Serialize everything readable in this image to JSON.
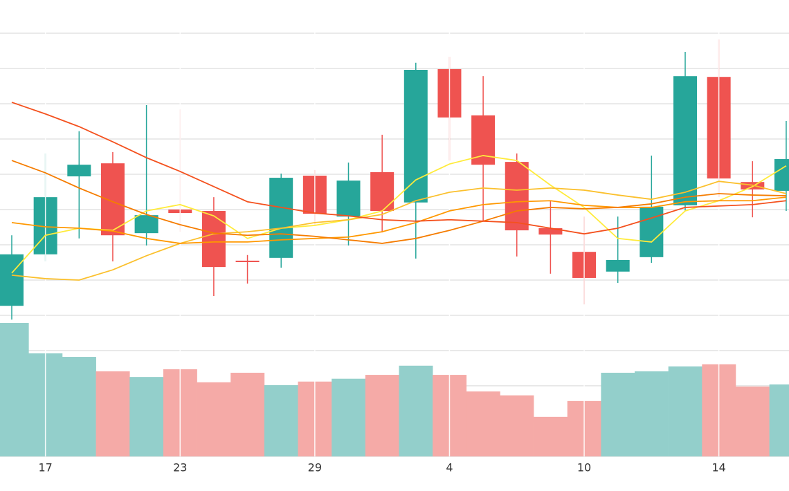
{
  "chart_data": [
    {
      "type": "candlestick",
      "open": [
        0.27,
        1.73,
        3.94,
        4.31,
        2.33,
        3.0,
        2.96,
        1.55,
        1.63,
        3.96,
        2.8,
        4.06,
        3.2,
        6.98,
        5.67,
        4.35,
        2.47,
        1.8,
        1.24,
        1.65,
        3.12,
        6.76,
        3.78,
        3.53
      ],
      "high": [
        2.27,
        4.59,
        5.22,
        4.63,
        5.96,
        5.84,
        3.35,
        1.71,
        4.02,
        4.12,
        4.33,
        5.12,
        7.16,
        7.33,
        6.78,
        4.59,
        3.25,
        2.8,
        2.8,
        4.53,
        7.47,
        7.82,
        4.37,
        5.51
      ],
      "low": [
        -0.12,
        1.53,
        2.18,
        1.53,
        1.98,
        2.37,
        0.55,
        0.9,
        1.35,
        2.57,
        1.98,
        2.35,
        1.61,
        4.39,
        2.67,
        1.67,
        1.18,
        0.31,
        0.92,
        1.49,
        2.96,
        3.35,
        2.78,
        2.96
      ],
      "close": [
        1.73,
        3.35,
        4.27,
        2.27,
        2.84,
        2.9,
        1.37,
        1.51,
        3.9,
        2.88,
        3.82,
        2.96,
        6.96,
        5.61,
        4.27,
        2.41,
        2.29,
        1.06,
        1.57,
        3.08,
        6.78,
        3.88,
        3.57,
        4.43
      ],
      "up_color": "#26a69a",
      "down_color": "#ef5350",
      "series": [
        {
          "color": "#ffeb3b",
          "values": [
            1.2,
            2.27,
            2.47,
            2.41,
            2.96,
            3.14,
            2.82,
            2.18,
            2.47,
            2.55,
            2.71,
            2.96,
            3.84,
            4.29,
            4.53,
            4.39,
            3.69,
            3.06,
            2.18,
            2.08,
            2.96,
            3.25,
            3.65,
            4.24
          ]
        },
        {
          "color": "#fbc02d",
          "values": [
            1.14,
            1.04,
            1.0,
            1.29,
            1.69,
            2.04,
            2.31,
            2.37,
            2.47,
            2.63,
            2.71,
            2.86,
            3.25,
            3.49,
            3.61,
            3.55,
            3.61,
            3.55,
            3.41,
            3.29,
            3.49,
            3.8,
            3.69,
            3.45
          ]
        },
        {
          "color": "#ff9800",
          "values": [
            2.63,
            2.51,
            2.47,
            2.39,
            2.18,
            2.04,
            2.08,
            2.08,
            2.14,
            2.18,
            2.22,
            2.37,
            2.63,
            2.96,
            3.14,
            3.22,
            3.25,
            3.12,
            3.06,
            3.06,
            3.22,
            3.25,
            3.25,
            3.35
          ]
        },
        {
          "color": "#f57c00",
          "values": [
            4.39,
            4.04,
            3.61,
            3.22,
            2.86,
            2.57,
            2.33,
            2.27,
            2.31,
            2.24,
            2.14,
            2.04,
            2.18,
            2.41,
            2.67,
            2.96,
            3.06,
            3.02,
            3.06,
            3.16,
            3.35,
            3.45,
            3.41,
            3.39
          ]
        },
        {
          "color": "#f4511e",
          "values": [
            6.04,
            5.71,
            5.35,
            4.92,
            4.47,
            4.08,
            3.65,
            3.22,
            3.06,
            2.9,
            2.82,
            2.71,
            2.67,
            2.71,
            2.67,
            2.63,
            2.47,
            2.31,
            2.47,
            2.76,
            3.06,
            3.1,
            3.14,
            3.25
          ]
        }
      ],
      "ylim": [
        -0.2,
        8.94
      ],
      "yticks": [
        0,
        1,
        2,
        3,
        4,
        5,
        6,
        7,
        8
      ],
      "grid": true
    },
    {
      "type": "bar",
      "categories": [
        null,
        "17",
        null,
        null,
        null,
        "23",
        null,
        null,
        null,
        "29",
        null,
        null,
        null,
        "4",
        null,
        null,
        null,
        "10",
        null,
        null,
        null,
        "14",
        null,
        null
      ],
      "values": [
        3.78,
        2.92,
        2.82,
        2.41,
        2.25,
        2.47,
        2.1,
        2.37,
        2.02,
        2.12,
        2.2,
        2.31,
        2.57,
        2.31,
        1.84,
        1.73,
        1.12,
        1.57,
        2.37,
        2.41,
        2.55,
        2.61,
        1.98,
        2.04
      ],
      "colors": [
        "#93cfcb",
        "#93cfcb",
        "#93cfcb",
        "#f5aaa7",
        "#93cfcb",
        "#f5aaa7",
        "#f5aaa7",
        "#f5aaa7",
        "#93cfcb",
        "#f5aaa7",
        "#93cfcb",
        "#f5aaa7",
        "#93cfcb",
        "#f5aaa7",
        "#f5aaa7",
        "#f5aaa7",
        "#f5aaa7",
        "#f5aaa7",
        "#93cfcb",
        "#93cfcb",
        "#93cfcb",
        "#f5aaa7",
        "#f5aaa7",
        "#93cfcb"
      ],
      "ylim": [
        0,
        3.8
      ],
      "yticks": [
        0,
        1,
        2,
        3
      ],
      "grid": true
    }
  ]
}
